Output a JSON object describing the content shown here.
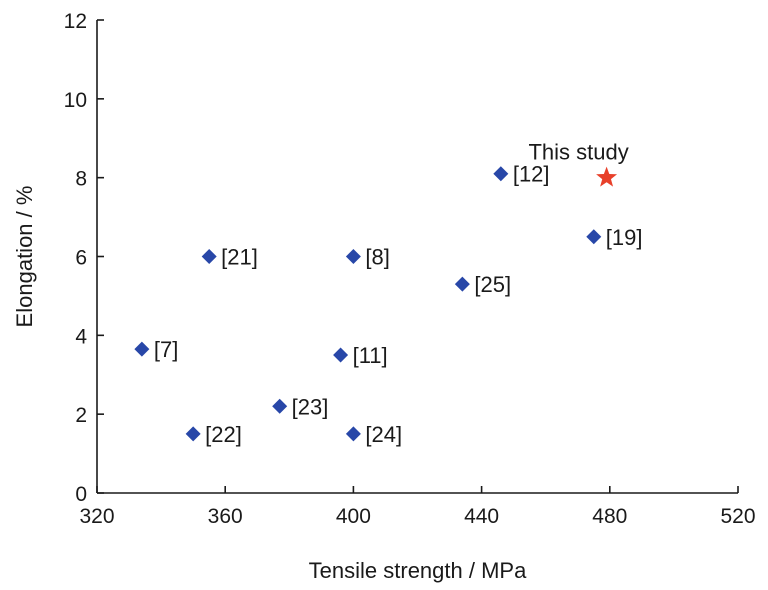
{
  "chart_data": {
    "type": "scatter",
    "xlabel": "Tensile strength / MPa",
    "ylabel": "Elongation / %",
    "xlim": [
      320,
      520
    ],
    "ylim": [
      0,
      12
    ],
    "xticks": [
      320,
      360,
      400,
      440,
      480,
      520
    ],
    "yticks": [
      0,
      2,
      4,
      6,
      8,
      10,
      12
    ],
    "grid": false,
    "colors": {
      "reference": "#2847A8",
      "highlight": "#E8402A"
    },
    "points": [
      {
        "label": "[7]",
        "x": 334,
        "y": 3.65,
        "marker": "diamond"
      },
      {
        "label": "[21]",
        "x": 355,
        "y": 6.0,
        "marker": "diamond"
      },
      {
        "label": "[22]",
        "x": 350,
        "y": 1.5,
        "marker": "diamond"
      },
      {
        "label": "[23]",
        "x": 377,
        "y": 2.2,
        "marker": "diamond"
      },
      {
        "label": "[8]",
        "x": 400,
        "y": 6.0,
        "marker": "diamond"
      },
      {
        "label": "[11]",
        "x": 396,
        "y": 3.5,
        "marker": "diamond"
      },
      {
        "label": "[24]",
        "x": 400,
        "y": 1.5,
        "marker": "diamond"
      },
      {
        "label": "[25]",
        "x": 434,
        "y": 5.3,
        "marker": "diamond"
      },
      {
        "label": "[12]",
        "x": 446,
        "y": 8.1,
        "marker": "diamond"
      },
      {
        "label": "[19]",
        "x": 475,
        "y": 6.5,
        "marker": "diamond"
      },
      {
        "label": "This study",
        "x": 479,
        "y": 8.0,
        "marker": "star"
      }
    ]
  }
}
